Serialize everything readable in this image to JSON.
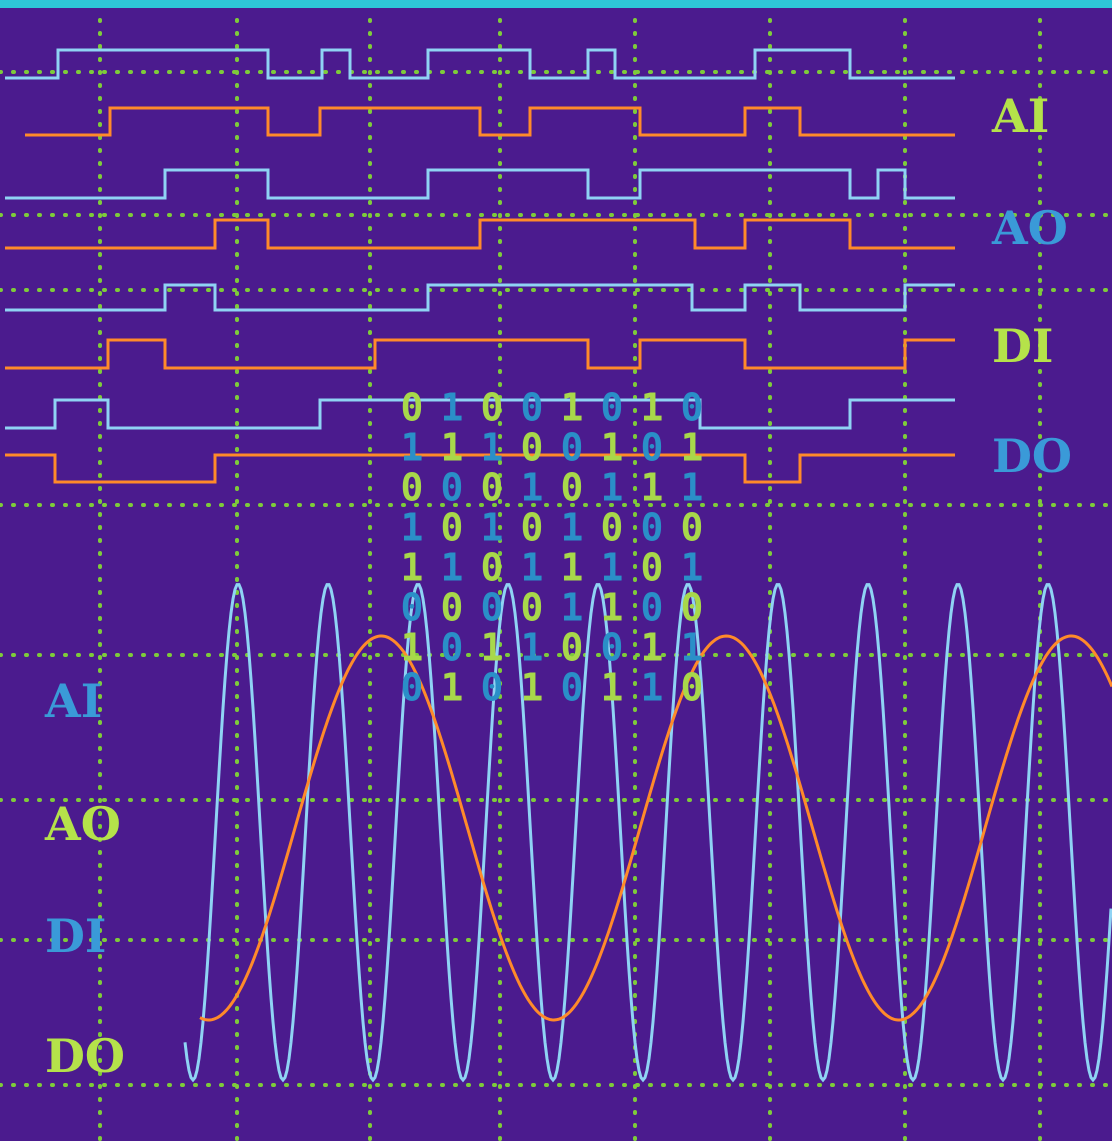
{
  "right_labels": [
    "AI",
    "AO",
    "DI",
    "DO"
  ],
  "left_labels": [
    "AI",
    "AO",
    "DI",
    "DO"
  ],
  "binary_rows": [
    [
      "0",
      "1",
      "0",
      "0",
      "1",
      "0",
      "1",
      "0"
    ],
    [
      "1",
      "1",
      "1",
      "0",
      "0",
      "1",
      "0",
      "1"
    ],
    [
      "0",
      "0",
      "0",
      "1",
      "0",
      "1",
      "1",
      "1"
    ],
    [
      "1",
      "0",
      "1",
      "0",
      "1",
      "0",
      "0",
      "0"
    ],
    [
      "1",
      "1",
      "0",
      "1",
      "1",
      "1",
      "0",
      "1"
    ],
    [
      "0",
      "0",
      "0",
      "0",
      "1",
      "1",
      "0",
      "0"
    ],
    [
      "1",
      "0",
      "1",
      "1",
      "0",
      "0",
      "1",
      "1"
    ],
    [
      "0",
      "1",
      "0",
      "1",
      "0",
      "1",
      "1",
      "0"
    ]
  ]
}
